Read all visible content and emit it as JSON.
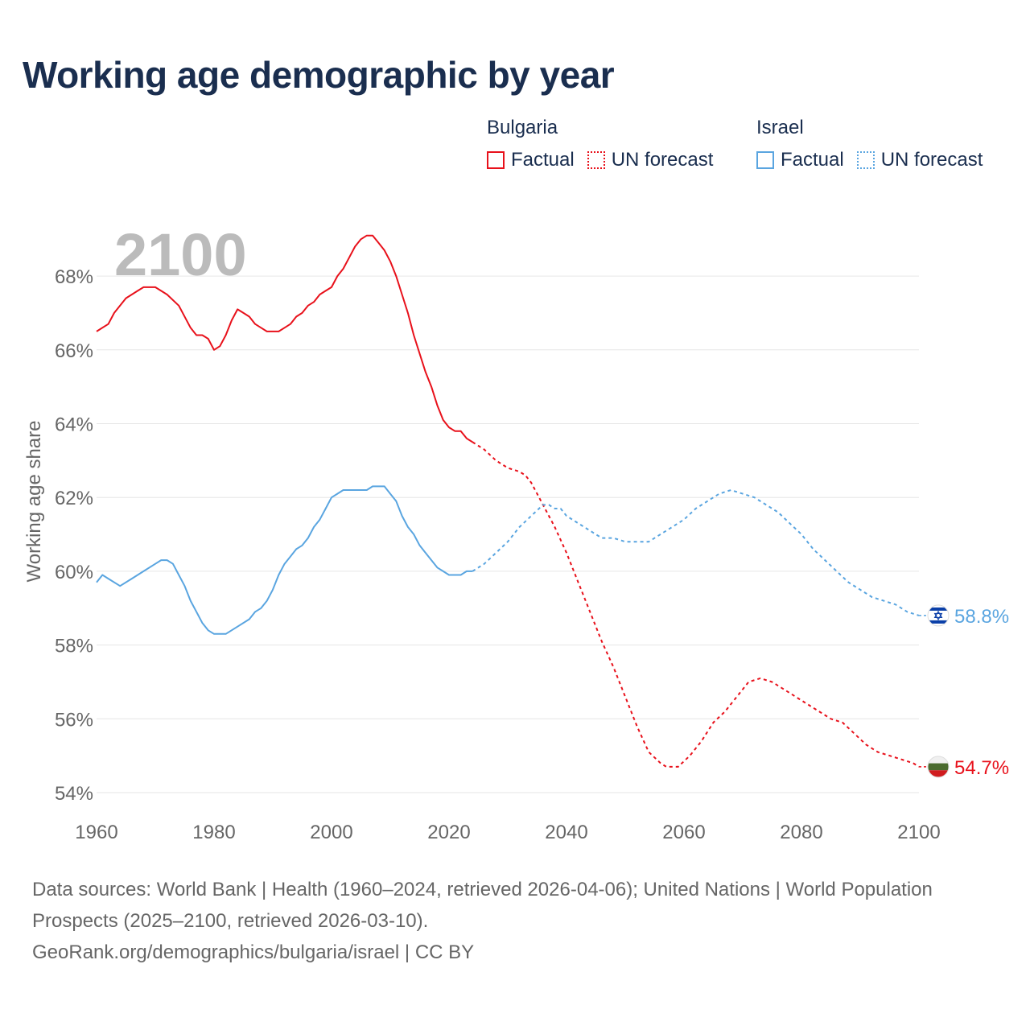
{
  "title": "Working age demographic by year",
  "legend": {
    "groups": [
      {
        "name": "Bulgaria",
        "factual": "Factual",
        "forecast": "UN forecast",
        "color": "#e8111b"
      },
      {
        "name": "Israel",
        "factual": "Factual",
        "forecast": "UN forecast",
        "color": "#5aa5e0"
      }
    ]
  },
  "year_display": "2100",
  "footer": {
    "line1": "Data sources: World Bank | Health (1960–2024, retrieved 2026-04-06); United Nations | World Population Prospects (2025–2100, retrieved 2026-03-10).",
    "line2": "GeoRank.org/demographics/bulgaria/israel | CC BY"
  },
  "chart_data": {
    "type": "line",
    "title": "Working age demographic by year",
    "xlabel": "",
    "ylabel": "Working age share",
    "xlim": [
      1960,
      2100
    ],
    "ylim": [
      54,
      69.5
    ],
    "x_ticks": [
      1960,
      1980,
      2000,
      2020,
      2040,
      2060,
      2080,
      2100
    ],
    "y_ticks": [
      54,
      56,
      58,
      60,
      62,
      64,
      66,
      68
    ],
    "y_tick_labels": [
      "54%",
      "56%",
      "58%",
      "60%",
      "62%",
      "64%",
      "66%",
      "68%"
    ],
    "grid": true,
    "factual_end_year": 2024,
    "series": [
      {
        "name": "Bulgaria",
        "color": "#e8111b",
        "end_label": "54.7%",
        "points": [
          [
            1960,
            66.5
          ],
          [
            1962,
            66.7
          ],
          [
            1963,
            67.0
          ],
          [
            1965,
            67.4
          ],
          [
            1967,
            67.6
          ],
          [
            1968,
            67.7
          ],
          [
            1970,
            67.7
          ],
          [
            1972,
            67.5
          ],
          [
            1974,
            67.2
          ],
          [
            1976,
            66.6
          ],
          [
            1977,
            66.4
          ],
          [
            1978,
            66.4
          ],
          [
            1979,
            66.3
          ],
          [
            1980,
            66.0
          ],
          [
            1981,
            66.1
          ],
          [
            1982,
            66.4
          ],
          [
            1983,
            66.8
          ],
          [
            1984,
            67.1
          ],
          [
            1985,
            67.0
          ],
          [
            1986,
            66.9
          ],
          [
            1987,
            66.7
          ],
          [
            1988,
            66.6
          ],
          [
            1989,
            66.5
          ],
          [
            1990,
            66.5
          ],
          [
            1991,
            66.5
          ],
          [
            1992,
            66.6
          ],
          [
            1993,
            66.7
          ],
          [
            1994,
            66.9
          ],
          [
            1995,
            67.0
          ],
          [
            1996,
            67.2
          ],
          [
            1997,
            67.3
          ],
          [
            1998,
            67.5
          ],
          [
            1999,
            67.6
          ],
          [
            2000,
            67.7
          ],
          [
            2001,
            68.0
          ],
          [
            2002,
            68.2
          ],
          [
            2003,
            68.5
          ],
          [
            2004,
            68.8
          ],
          [
            2005,
            69.0
          ],
          [
            2006,
            69.1
          ],
          [
            2007,
            69.1
          ],
          [
            2008,
            68.9
          ],
          [
            2009,
            68.7
          ],
          [
            2010,
            68.4
          ],
          [
            2011,
            68.0
          ],
          [
            2012,
            67.5
          ],
          [
            2013,
            67.0
          ],
          [
            2014,
            66.4
          ],
          [
            2015,
            65.9
          ],
          [
            2016,
            65.4
          ],
          [
            2017,
            65.0
          ],
          [
            2018,
            64.5
          ],
          [
            2019,
            64.1
          ],
          [
            2020,
            63.9
          ],
          [
            2021,
            63.8
          ],
          [
            2022,
            63.8
          ],
          [
            2023,
            63.6
          ],
          [
            2024,
            63.5
          ],
          [
            2025,
            63.4
          ],
          [
            2026,
            63.3
          ],
          [
            2028,
            63.0
          ],
          [
            2030,
            62.8
          ],
          [
            2032,
            62.7
          ],
          [
            2033,
            62.6
          ],
          [
            2034,
            62.4
          ],
          [
            2035,
            62.1
          ],
          [
            2036,
            61.8
          ],
          [
            2037,
            61.5
          ],
          [
            2038,
            61.2
          ],
          [
            2040,
            60.5
          ],
          [
            2042,
            59.7
          ],
          [
            2044,
            58.9
          ],
          [
            2046,
            58.1
          ],
          [
            2048,
            57.4
          ],
          [
            2050,
            56.6
          ],
          [
            2052,
            55.8
          ],
          [
            2054,
            55.1
          ],
          [
            2056,
            54.8
          ],
          [
            2057,
            54.7
          ],
          [
            2059,
            54.7
          ],
          [
            2061,
            55.0
          ],
          [
            2063,
            55.4
          ],
          [
            2065,
            55.9
          ],
          [
            2067,
            56.2
          ],
          [
            2069,
            56.6
          ],
          [
            2071,
            57.0
          ],
          [
            2073,
            57.1
          ],
          [
            2075,
            57.0
          ],
          [
            2077,
            56.8
          ],
          [
            2079,
            56.6
          ],
          [
            2081,
            56.4
          ],
          [
            2083,
            56.2
          ],
          [
            2085,
            56.0
          ],
          [
            2087,
            55.9
          ],
          [
            2089,
            55.6
          ],
          [
            2091,
            55.3
          ],
          [
            2093,
            55.1
          ],
          [
            2095,
            55.0
          ],
          [
            2097,
            54.9
          ],
          [
            2099,
            54.8
          ],
          [
            2100,
            54.7
          ]
        ]
      },
      {
        "name": "Israel",
        "color": "#5aa5e0",
        "end_label": "58.8%",
        "points": [
          [
            1960,
            59.7
          ],
          [
            1961,
            59.9
          ],
          [
            1962,
            59.8
          ],
          [
            1964,
            59.6
          ],
          [
            1966,
            59.8
          ],
          [
            1968,
            60.0
          ],
          [
            1970,
            60.2
          ],
          [
            1971,
            60.3
          ],
          [
            1972,
            60.3
          ],
          [
            1973,
            60.2
          ],
          [
            1974,
            59.9
          ],
          [
            1975,
            59.6
          ],
          [
            1976,
            59.2
          ],
          [
            1977,
            58.9
          ],
          [
            1978,
            58.6
          ],
          [
            1979,
            58.4
          ],
          [
            1980,
            58.3
          ],
          [
            1982,
            58.3
          ],
          [
            1984,
            58.5
          ],
          [
            1986,
            58.7
          ],
          [
            1987,
            58.9
          ],
          [
            1988,
            59.0
          ],
          [
            1989,
            59.2
          ],
          [
            1990,
            59.5
          ],
          [
            1991,
            59.9
          ],
          [
            1992,
            60.2
          ],
          [
            1993,
            60.4
          ],
          [
            1994,
            60.6
          ],
          [
            1995,
            60.7
          ],
          [
            1996,
            60.9
          ],
          [
            1997,
            61.2
          ],
          [
            1998,
            61.4
          ],
          [
            1999,
            61.7
          ],
          [
            2000,
            62.0
          ],
          [
            2001,
            62.1
          ],
          [
            2002,
            62.2
          ],
          [
            2004,
            62.2
          ],
          [
            2006,
            62.2
          ],
          [
            2007,
            62.3
          ],
          [
            2009,
            62.3
          ],
          [
            2010,
            62.1
          ],
          [
            2011,
            61.9
          ],
          [
            2012,
            61.5
          ],
          [
            2013,
            61.2
          ],
          [
            2014,
            61.0
          ],
          [
            2015,
            60.7
          ],
          [
            2016,
            60.5
          ],
          [
            2017,
            60.3
          ],
          [
            2018,
            60.1
          ],
          [
            2019,
            60.0
          ],
          [
            2020,
            59.9
          ],
          [
            2022,
            59.9
          ],
          [
            2023,
            60.0
          ],
          [
            2024,
            60.0
          ],
          [
            2026,
            60.2
          ],
          [
            2028,
            60.5
          ],
          [
            2030,
            60.8
          ],
          [
            2032,
            61.2
          ],
          [
            2034,
            61.5
          ],
          [
            2036,
            61.8
          ],
          [
            2037,
            61.8
          ],
          [
            2038,
            61.7
          ],
          [
            2039,
            61.7
          ],
          [
            2040,
            61.5
          ],
          [
            2042,
            61.3
          ],
          [
            2044,
            61.1
          ],
          [
            2046,
            60.9
          ],
          [
            2048,
            60.9
          ],
          [
            2050,
            60.8
          ],
          [
            2052,
            60.8
          ],
          [
            2054,
            60.8
          ],
          [
            2056,
            61.0
          ],
          [
            2058,
            61.2
          ],
          [
            2060,
            61.4
          ],
          [
            2062,
            61.7
          ],
          [
            2064,
            61.9
          ],
          [
            2066,
            62.1
          ],
          [
            2068,
            62.2
          ],
          [
            2070,
            62.1
          ],
          [
            2072,
            62.0
          ],
          [
            2074,
            61.8
          ],
          [
            2076,
            61.6
          ],
          [
            2078,
            61.3
          ],
          [
            2080,
            61.0
          ],
          [
            2082,
            60.6
          ],
          [
            2084,
            60.3
          ],
          [
            2086,
            60.0
          ],
          [
            2088,
            59.7
          ],
          [
            2090,
            59.5
          ],
          [
            2092,
            59.3
          ],
          [
            2094,
            59.2
          ],
          [
            2096,
            59.1
          ],
          [
            2098,
            58.9
          ],
          [
            2100,
            58.8
          ]
        ]
      }
    ]
  }
}
